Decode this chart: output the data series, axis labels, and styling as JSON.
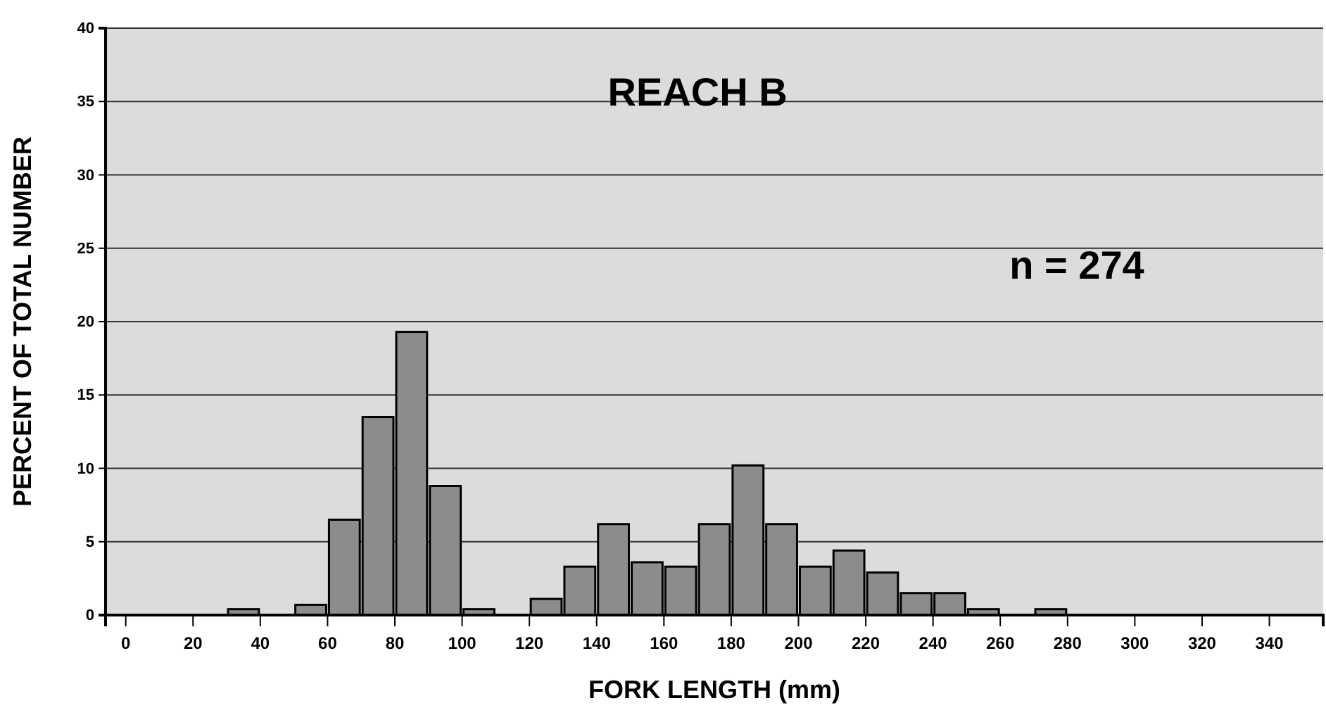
{
  "chart_data": {
    "type": "histogram",
    "title": "REACH B",
    "annotations": [
      "n = 274"
    ],
    "xlabel": "FORK LENGTH (mm)",
    "ylabel": "PERCENT OF TOTAL NUMBER",
    "bins": [
      30,
      40,
      50,
      60,
      70,
      80,
      90,
      100,
      110,
      120,
      130,
      140,
      150,
      160,
      170,
      180,
      190,
      200,
      210,
      220,
      230,
      240,
      250,
      260,
      270,
      280
    ],
    "values": [
      0.4,
      0,
      0.7,
      6.5,
      13.5,
      19.3,
      8.8,
      0.4,
      0,
      1.1,
      3.3,
      6.2,
      3.6,
      3.3,
      6.2,
      10.2,
      6.2,
      3.3,
      4.4,
      2.9,
      1.5,
      1.5,
      0.4,
      0,
      0.4
    ],
    "color": "#8c8c8c",
    "xlim": [
      -6,
      356
    ],
    "ylim": [
      0,
      40
    ],
    "xticks": [
      0,
      20,
      40,
      60,
      80,
      100,
      120,
      140,
      160,
      180,
      200,
      220,
      240,
      260,
      280,
      300,
      320,
      340
    ],
    "yticks": [
      0,
      5,
      10,
      15,
      20,
      25,
      30,
      35,
      40
    ],
    "grid": "y"
  }
}
